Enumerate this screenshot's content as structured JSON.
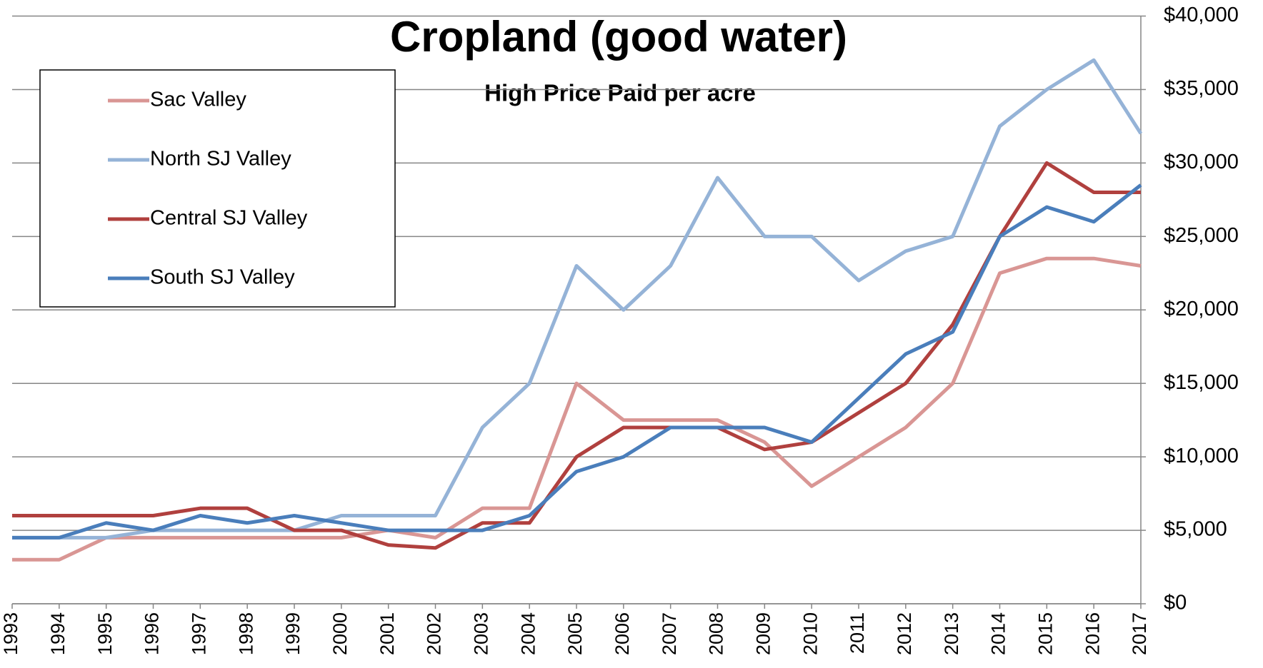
{
  "chart_data": {
    "type": "line",
    "title": "Cropland (good water)",
    "subtitle": "High Price Paid per acre",
    "x": [
      1993,
      1994,
      1995,
      1996,
      1997,
      1998,
      1999,
      2000,
      2001,
      2002,
      2003,
      2004,
      2005,
      2006,
      2007,
      2008,
      2009,
      2010,
      2011,
      2012,
      2013,
      2014,
      2015,
      2016,
      2017
    ],
    "xlim": [
      1993,
      2017
    ],
    "xticks": [
      1993,
      1994,
      1995,
      1996,
      1997,
      1998,
      1999,
      2000,
      2001,
      2002,
      2003,
      2004,
      2005,
      2006,
      2007,
      2008,
      2009,
      2010,
      2011,
      2012,
      2013,
      2014,
      2015,
      2016,
      2017
    ],
    "ylim": [
      0,
      40000
    ],
    "yticks": [
      {
        "value": 0,
        "label": "$0"
      },
      {
        "value": 5000,
        "label": "$5,000"
      },
      {
        "value": 10000,
        "label": "$10,000"
      },
      {
        "value": 15000,
        "label": "$15,000"
      },
      {
        "value": 20000,
        "label": "$20,000"
      },
      {
        "value": 25000,
        "label": "$25,000"
      },
      {
        "value": 30000,
        "label": "$30,000"
      },
      {
        "value": 35000,
        "label": "$35,000"
      },
      {
        "value": 40000,
        "label": "$40,000"
      }
    ],
    "grid": true,
    "legend": "upper left",
    "series": [
      {
        "name": "Sac Valley",
        "color": "#d99694",
        "values": [
          3000,
          3000,
          4500,
          4500,
          4500,
          4500,
          4500,
          4500,
          5000,
          4500,
          6500,
          6500,
          15000,
          12500,
          12500,
          12500,
          11000,
          8000,
          10000,
          12000,
          15000,
          22500,
          23500,
          23500,
          23000
        ]
      },
      {
        "name": "North SJ Valley",
        "color": "#95b3d7",
        "values": [
          4500,
          4500,
          4500,
          5000,
          5000,
          5000,
          5000,
          6000,
          6000,
          6000,
          12000,
          15000,
          23000,
          20000,
          23000,
          29000,
          25000,
          25000,
          22000,
          24000,
          25000,
          32500,
          35000,
          37000,
          32000
        ]
      },
      {
        "name": "Central SJ Valley",
        "color": "#b0403e",
        "values": [
          6000,
          6000,
          6000,
          6000,
          6500,
          6500,
          5000,
          5000,
          4000,
          3800,
          5500,
          5500,
          10000,
          12000,
          12000,
          12000,
          10500,
          11000,
          13000,
          15000,
          19000,
          25000,
          30000,
          28000,
          28000
        ]
      },
      {
        "name": "South SJ Valley",
        "color": "#4a7ebb",
        "values": [
          4500,
          4500,
          5500,
          5000,
          6000,
          5500,
          6000,
          5500,
          5000,
          5000,
          5000,
          6000,
          9000,
          10000,
          12000,
          12000,
          12000,
          11000,
          14000,
          17000,
          18500,
          25000,
          27000,
          26000,
          28500
        ]
      }
    ]
  }
}
